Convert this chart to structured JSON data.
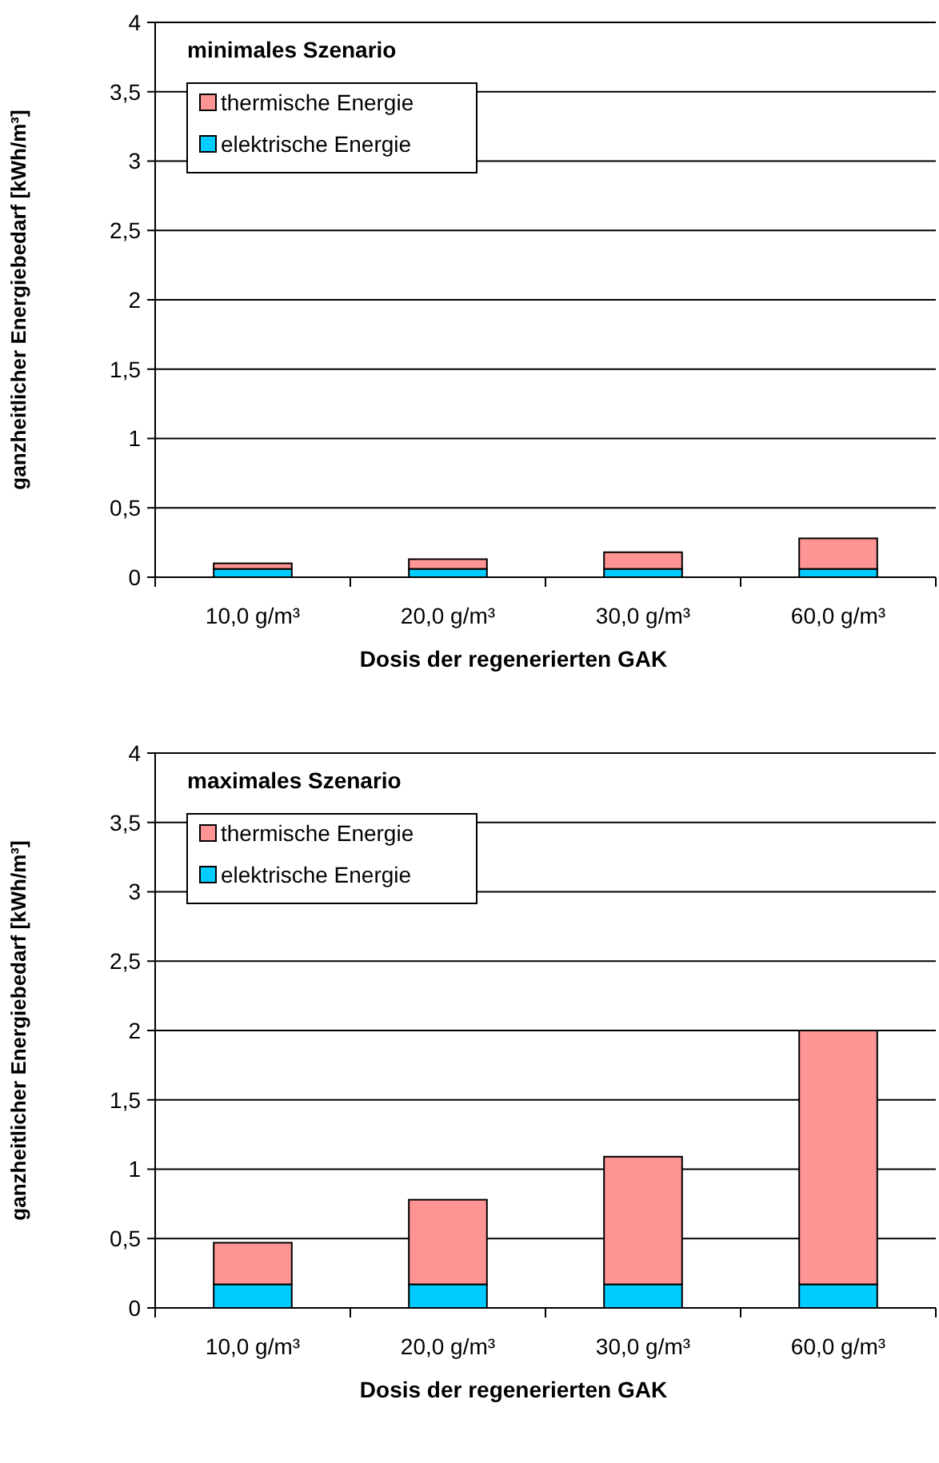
{
  "chart_data": [
    {
      "type": "bar",
      "title": "minimales Szenario",
      "xlabel": "Dosis der regenerierten GAK",
      "ylabel": "ganzheitlicher Energiebedarf [kWh/m³]",
      "categories": [
        "10,0 g/m³",
        "20,0 g/m³",
        "30,0 g/m³",
        "60,0 g/m³"
      ],
      "stacked": true,
      "series": [
        {
          "name": "elektrische Energie",
          "color": "#00ccff",
          "values": [
            0.06,
            0.06,
            0.06,
            0.06
          ]
        },
        {
          "name": "thermische Energie",
          "color": "#ff9494",
          "values": [
            0.04,
            0.07,
            0.12,
            0.22
          ]
        }
      ],
      "ylim": [
        0,
        4
      ],
      "yticks": [
        0,
        {
          "value": 0.5,
          "label": "0,5"
        },
        1,
        {
          "value": 1.5,
          "label": "1,5"
        },
        2,
        {
          "value": 2.5,
          "label": "2,5"
        },
        3,
        {
          "value": 3.5,
          "label": "3,5"
        },
        4
      ],
      "grid": "y",
      "legend": "top left"
    },
    {
      "type": "bar",
      "title": "maximales Szenario",
      "xlabel": "Dosis der regenerierten GAK",
      "ylabel": "ganzheitlicher Energiebedarf [kWh/m³]",
      "categories": [
        "10,0 g/m³",
        "20,0 g/m³",
        "30,0 g/m³",
        "60,0 g/m³"
      ],
      "stacked": true,
      "series": [
        {
          "name": "elektrische Energie",
          "color": "#00ccff",
          "values": [
            0.17,
            0.17,
            0.17,
            0.17
          ]
        },
        {
          "name": "thermische Energie",
          "color": "#ff9494",
          "values": [
            0.3,
            0.61,
            0.92,
            1.83
          ]
        }
      ],
      "ylim": [
        0,
        4
      ],
      "yticks": [
        0,
        {
          "value": 0.5,
          "label": "0,5"
        },
        1,
        {
          "value": 1.5,
          "label": "1,5"
        },
        2,
        {
          "value": 2.5,
          "label": "2,5"
        },
        3,
        {
          "value": 3.5,
          "label": "3,5"
        },
        4
      ],
      "grid": "y",
      "legend": "top left"
    }
  ]
}
